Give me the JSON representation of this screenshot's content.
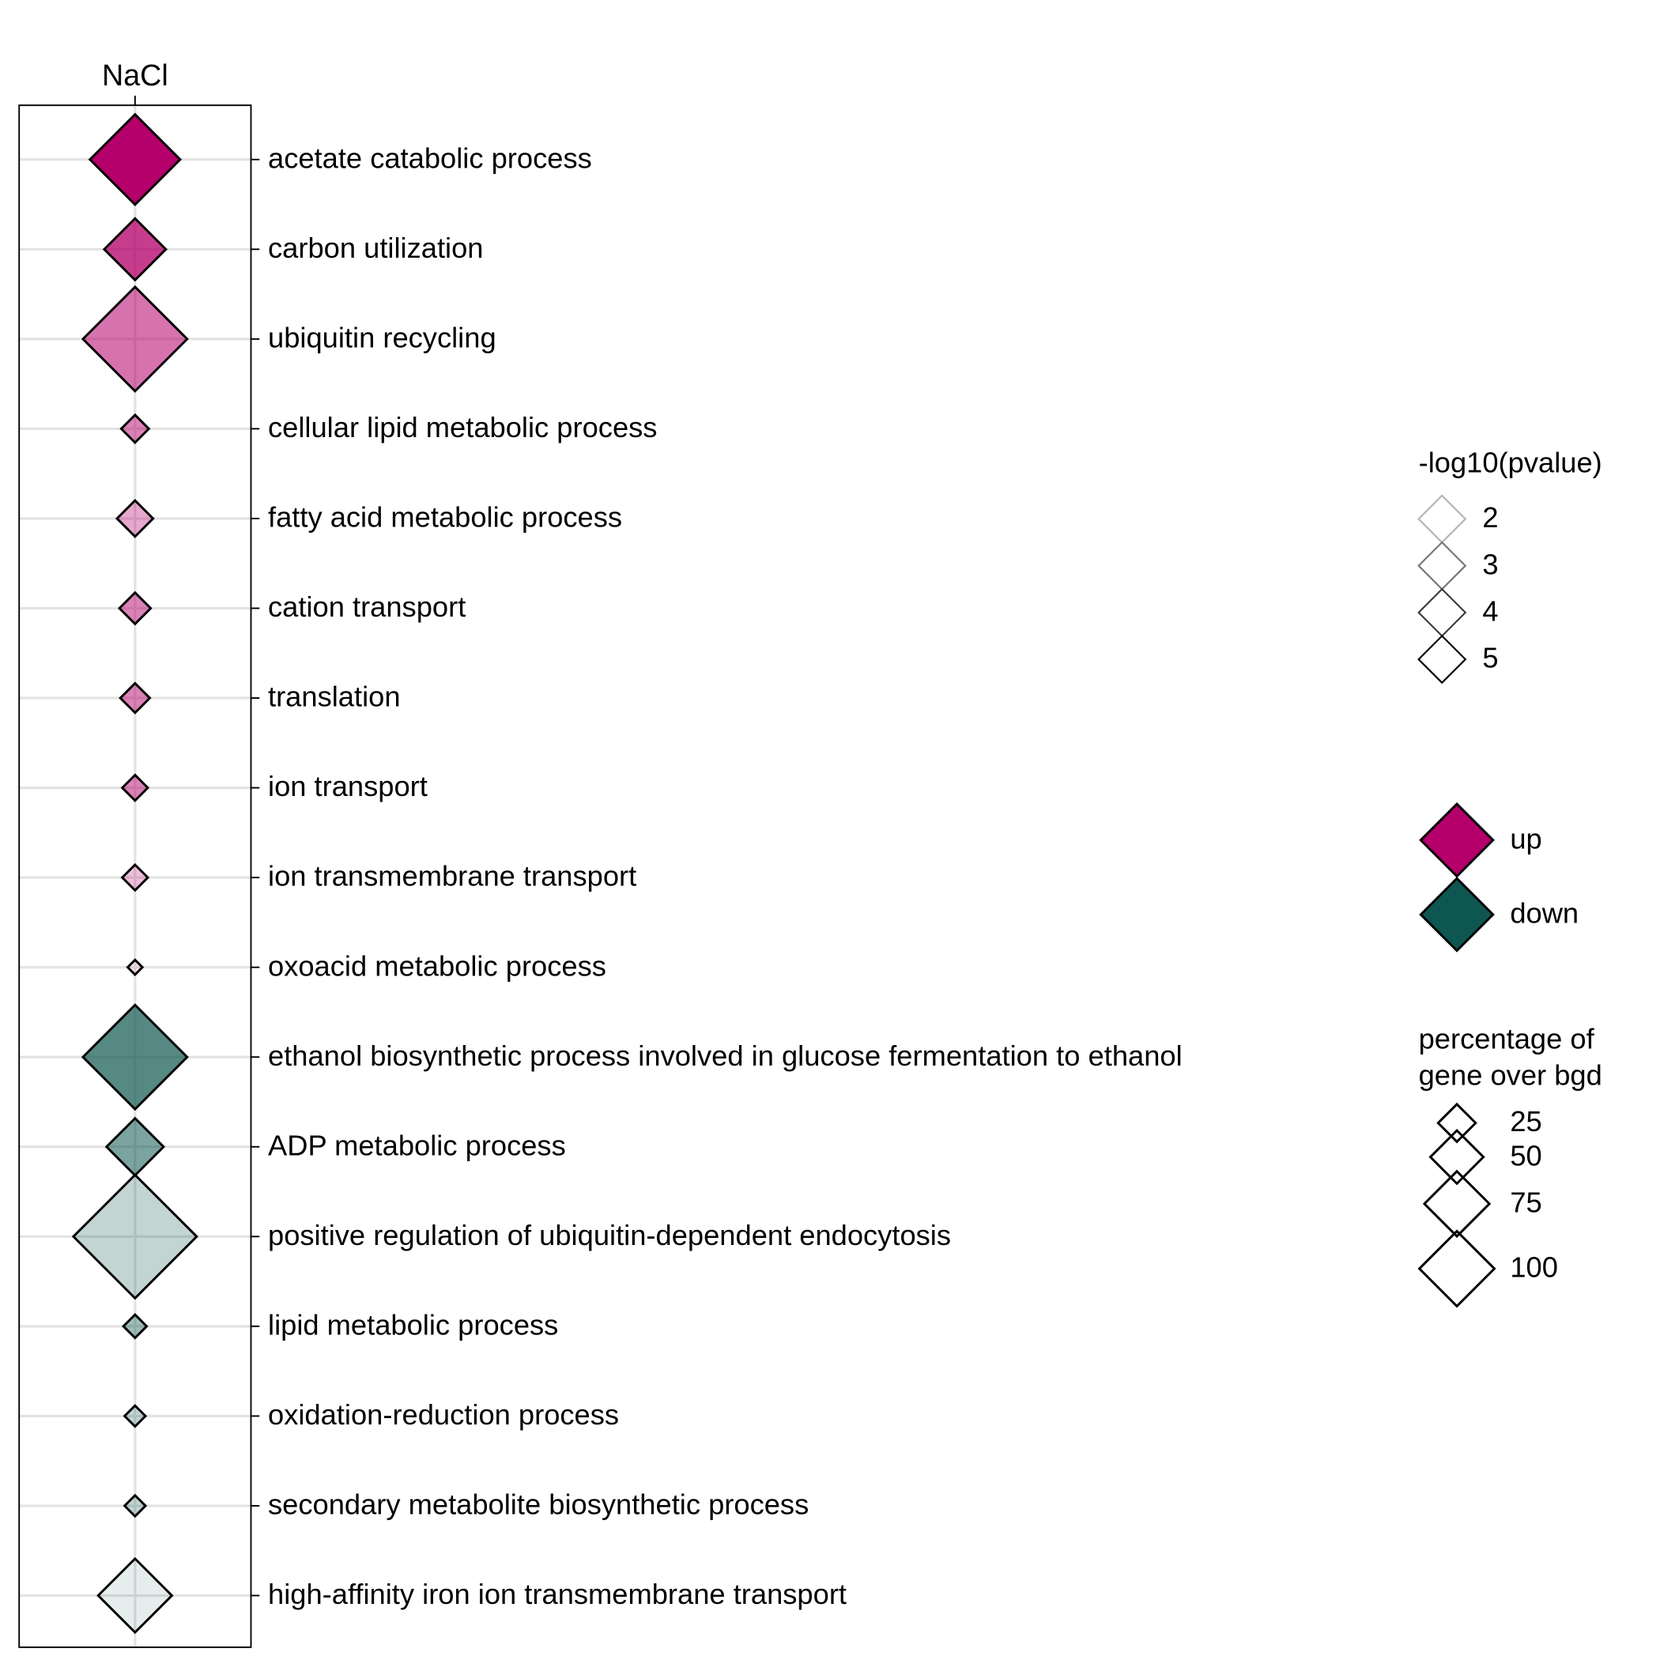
{
  "chart_data": {
    "type": "scatter",
    "x_categories": [
      "NaCl"
    ],
    "colors": {
      "up": "#b5006b",
      "down": "#0e5750",
      "edge": "#000000"
    },
    "rows": [
      {
        "term": "acetate catabolic process",
        "direction": "up",
        "neg_log10_pvalue": 5.0,
        "percentage": 75
      },
      {
        "term": "carbon utilization",
        "direction": "up",
        "neg_log10_pvalue": 4.2,
        "percentage": 35
      },
      {
        "term": "ubiquitin recycling",
        "direction": "up",
        "neg_log10_pvalue": 3.5,
        "percentage": 100
      },
      {
        "term": "cellular lipid metabolic process",
        "direction": "up",
        "neg_log10_pvalue": 3.3,
        "percentage": 7
      },
      {
        "term": "fatty acid metabolic process",
        "direction": "up",
        "neg_log10_pvalue": 2.8,
        "percentage": 12
      },
      {
        "term": "cation transport",
        "direction": "up",
        "neg_log10_pvalue": 3.3,
        "percentage": 9
      },
      {
        "term": "translation",
        "direction": "up",
        "neg_log10_pvalue": 3.3,
        "percentage": 8
      },
      {
        "term": "ion transport",
        "direction": "up",
        "neg_log10_pvalue": 3.3,
        "percentage": 6
      },
      {
        "term": "ion transmembrane transport",
        "direction": "up",
        "neg_log10_pvalue": 2.5,
        "percentage": 6
      },
      {
        "term": "oxoacid metabolic process",
        "direction": "up",
        "neg_log10_pvalue": 2.0,
        "percentage": 2
      },
      {
        "term": "ethanol biosynthetic process involved in glucose fermentation to ethanol",
        "direction": "down",
        "neg_log10_pvalue": 4.0,
        "percentage": 100
      },
      {
        "term": "ADP metabolic process",
        "direction": "down",
        "neg_log10_pvalue": 3.5,
        "percentage": 30
      },
      {
        "term": "positive regulation of ubiquitin-dependent endocytosis",
        "direction": "down",
        "neg_log10_pvalue": 2.5,
        "percentage": 140
      },
      {
        "term": "lipid metabolic process",
        "direction": "down",
        "neg_log10_pvalue": 3.0,
        "percentage": 5
      },
      {
        "term": "oxidation-reduction process",
        "direction": "down",
        "neg_log10_pvalue": 2.5,
        "percentage": 4
      },
      {
        "term": "secondary metabolite biosynthetic process",
        "direction": "down",
        "neg_log10_pvalue": 2.5,
        "percentage": 4
      },
      {
        "term": "high-affinity iron ion transmembrane transport",
        "direction": "down",
        "neg_log10_pvalue": 2.0,
        "percentage": 50
      }
    ],
    "legend_pvalue": {
      "title": "-log10(pvalue)",
      "values": [
        2,
        3,
        4,
        5
      ]
    },
    "legend_direction": {
      "items": [
        {
          "key": "up",
          "label": "up"
        },
        {
          "key": "down",
          "label": "down"
        }
      ]
    },
    "legend_size": {
      "title_lines": [
        "percentage of",
        "gene over bgd"
      ],
      "values": [
        25,
        50,
        75,
        100
      ]
    },
    "grid": true
  }
}
